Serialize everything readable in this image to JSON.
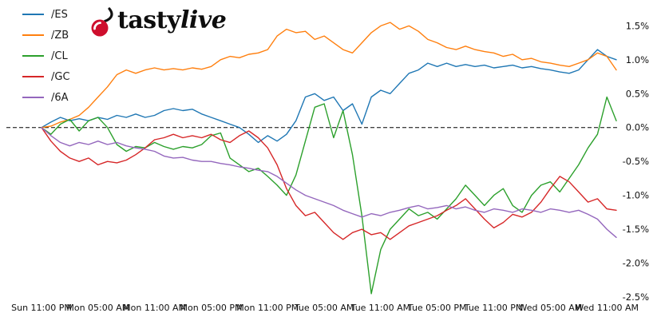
{
  "logo": {
    "brand_main": "tasty",
    "brand_accent": "live"
  },
  "colors": {
    "cherry_red": "#ce0e2d",
    "logo_text": "#0d0d0d",
    "zero_line": "#000000",
    "tick_text": "#111111",
    "background": "#ffffff"
  },
  "chart_data": {
    "type": "line",
    "title": "",
    "xlabel": "",
    "ylabel": "",
    "legend_position": "upper-left",
    "grid": false,
    "zero_line_dashed": true,
    "ylim": [
      -2.5,
      1.74
    ],
    "xlim": [
      0,
      61
    ],
    "x_unit": "hours since Sun 11:00 PM",
    "y_ticks": [
      {
        "value": 1.5,
        "label": "1.5%"
      },
      {
        "value": 1.0,
        "label": "1.0%"
      },
      {
        "value": 0.5,
        "label": "0.5%"
      },
      {
        "value": 0.0,
        "label": "0.0%"
      },
      {
        "value": -0.5,
        "label": "-0.5%"
      },
      {
        "value": -1.0,
        "label": "-1.0%"
      },
      {
        "value": -1.5,
        "label": "-1.5%"
      },
      {
        "value": -2.0,
        "label": "-2.0%"
      },
      {
        "value": -2.5,
        "label": "-2.5%"
      }
    ],
    "x_ticks": [
      {
        "pos": 0,
        "label": "Sun 11:00 PM"
      },
      {
        "pos": 6,
        "label": "Mon 05:00 AM"
      },
      {
        "pos": 12,
        "label": "Mon 11:00 AM"
      },
      {
        "pos": 18,
        "label": "Mon 05:00 PM"
      },
      {
        "pos": 24,
        "label": "Mon 11:00 PM"
      },
      {
        "pos": 30,
        "label": "Tue 05:00 AM"
      },
      {
        "pos": 36,
        "label": "Tue 11:00 AM"
      },
      {
        "pos": 42,
        "label": "Tue 05:00 PM"
      },
      {
        "pos": 48,
        "label": "Tue 11:00 PM"
      },
      {
        "pos": 54,
        "label": "Wed 05:00 AM"
      },
      {
        "pos": 60,
        "label": "Wed 11:00 AM"
      }
    ],
    "x": [
      0,
      1,
      2,
      3,
      4,
      5,
      6,
      7,
      8,
      9,
      10,
      11,
      12,
      13,
      14,
      15,
      16,
      17,
      18,
      19,
      20,
      21,
      22,
      23,
      24,
      25,
      26,
      27,
      28,
      29,
      30,
      31,
      32,
      33,
      34,
      35,
      36,
      37,
      38,
      39,
      40,
      41,
      42,
      43,
      44,
      45,
      46,
      47,
      48,
      49,
      50,
      51,
      52,
      53,
      54,
      55,
      56,
      57,
      58,
      59,
      60,
      61
    ],
    "series": [
      {
        "name": "/ES",
        "color": "#1f77b4",
        "values": [
          0.0,
          0.08,
          0.15,
          0.1,
          0.13,
          0.1,
          0.15,
          0.12,
          0.18,
          0.15,
          0.2,
          0.15,
          0.18,
          0.25,
          0.28,
          0.25,
          0.27,
          0.2,
          0.15,
          0.1,
          0.05,
          0.0,
          -0.1,
          -0.22,
          -0.12,
          -0.2,
          -0.1,
          0.1,
          0.45,
          0.5,
          0.4,
          0.45,
          0.25,
          0.35,
          0.05,
          0.45,
          0.55,
          0.5,
          0.65,
          0.8,
          0.85,
          0.95,
          0.9,
          0.95,
          0.9,
          0.93,
          0.9,
          0.92,
          0.88,
          0.9,
          0.92,
          0.88,
          0.9,
          0.87,
          0.85,
          0.82,
          0.8,
          0.85,
          1.0,
          1.15,
          1.05,
          1.0
        ]
      },
      {
        "name": "/ZB",
        "color": "#ff7f0e",
        "values": [
          0.0,
          0.02,
          0.08,
          0.12,
          0.18,
          0.3,
          0.45,
          0.6,
          0.78,
          0.85,
          0.8,
          0.85,
          0.88,
          0.85,
          0.87,
          0.85,
          0.88,
          0.86,
          0.9,
          1.0,
          1.05,
          1.03,
          1.08,
          1.1,
          1.15,
          1.35,
          1.45,
          1.4,
          1.42,
          1.3,
          1.35,
          1.25,
          1.15,
          1.1,
          1.25,
          1.4,
          1.5,
          1.55,
          1.45,
          1.5,
          1.42,
          1.3,
          1.25,
          1.18,
          1.15,
          1.2,
          1.15,
          1.12,
          1.1,
          1.05,
          1.08,
          1.0,
          1.02,
          0.97,
          0.95,
          0.92,
          0.9,
          0.95,
          1.0,
          1.1,
          1.05,
          0.85
        ]
      },
      {
        "name": "/CL",
        "color": "#2ca02c",
        "values": [
          0.0,
          -0.1,
          0.05,
          0.12,
          -0.05,
          0.1,
          0.15,
          0.0,
          -0.25,
          -0.35,
          -0.28,
          -0.3,
          -0.22,
          -0.28,
          -0.32,
          -0.28,
          -0.3,
          -0.25,
          -0.12,
          -0.08,
          -0.45,
          -0.55,
          -0.65,
          -0.6,
          -0.72,
          -0.85,
          -1.0,
          -0.7,
          -0.2,
          0.3,
          0.35,
          -0.15,
          0.25,
          -0.4,
          -1.3,
          -2.45,
          -1.8,
          -1.5,
          -1.35,
          -1.2,
          -1.3,
          -1.25,
          -1.35,
          -1.2,
          -1.05,
          -0.85,
          -1.0,
          -1.15,
          -1.0,
          -0.9,
          -1.15,
          -1.25,
          -1.0,
          -0.85,
          -0.8,
          -0.95,
          -0.75,
          -0.55,
          -0.3,
          -0.1,
          0.45,
          0.1
        ]
      },
      {
        "name": "/GC",
        "color": "#d62728",
        "values": [
          0.0,
          -0.2,
          -0.35,
          -0.45,
          -0.5,
          -0.45,
          -0.55,
          -0.5,
          -0.52,
          -0.48,
          -0.4,
          -0.3,
          -0.18,
          -0.15,
          -0.1,
          -0.15,
          -0.12,
          -0.15,
          -0.1,
          -0.18,
          -0.22,
          -0.12,
          -0.05,
          -0.15,
          -0.3,
          -0.55,
          -0.9,
          -1.15,
          -1.3,
          -1.25,
          -1.4,
          -1.55,
          -1.65,
          -1.55,
          -1.5,
          -1.58,
          -1.55,
          -1.65,
          -1.55,
          -1.45,
          -1.4,
          -1.35,
          -1.3,
          -1.22,
          -1.15,
          -1.05,
          -1.2,
          -1.35,
          -1.48,
          -1.4,
          -1.28,
          -1.32,
          -1.25,
          -1.1,
          -0.9,
          -0.72,
          -0.8,
          -0.95,
          -1.1,
          -1.05,
          -1.2,
          -1.22
        ]
      },
      {
        "name": "/6A",
        "color": "#9467bd",
        "values": [
          0.0,
          -0.12,
          -0.22,
          -0.27,
          -0.22,
          -0.25,
          -0.2,
          -0.25,
          -0.22,
          -0.27,
          -0.3,
          -0.32,
          -0.35,
          -0.42,
          -0.45,
          -0.44,
          -0.48,
          -0.5,
          -0.5,
          -0.53,
          -0.55,
          -0.58,
          -0.6,
          -0.63,
          -0.65,
          -0.72,
          -0.82,
          -0.92,
          -1.0,
          -1.05,
          -1.1,
          -1.15,
          -1.22,
          -1.27,
          -1.32,
          -1.27,
          -1.3,
          -1.25,
          -1.22,
          -1.18,
          -1.15,
          -1.2,
          -1.18,
          -1.15,
          -1.2,
          -1.17,
          -1.22,
          -1.25,
          -1.2,
          -1.22,
          -1.25,
          -1.2,
          -1.22,
          -1.25,
          -1.2,
          -1.22,
          -1.25,
          -1.22,
          -1.28,
          -1.35,
          -1.5,
          -1.62
        ]
      }
    ]
  }
}
